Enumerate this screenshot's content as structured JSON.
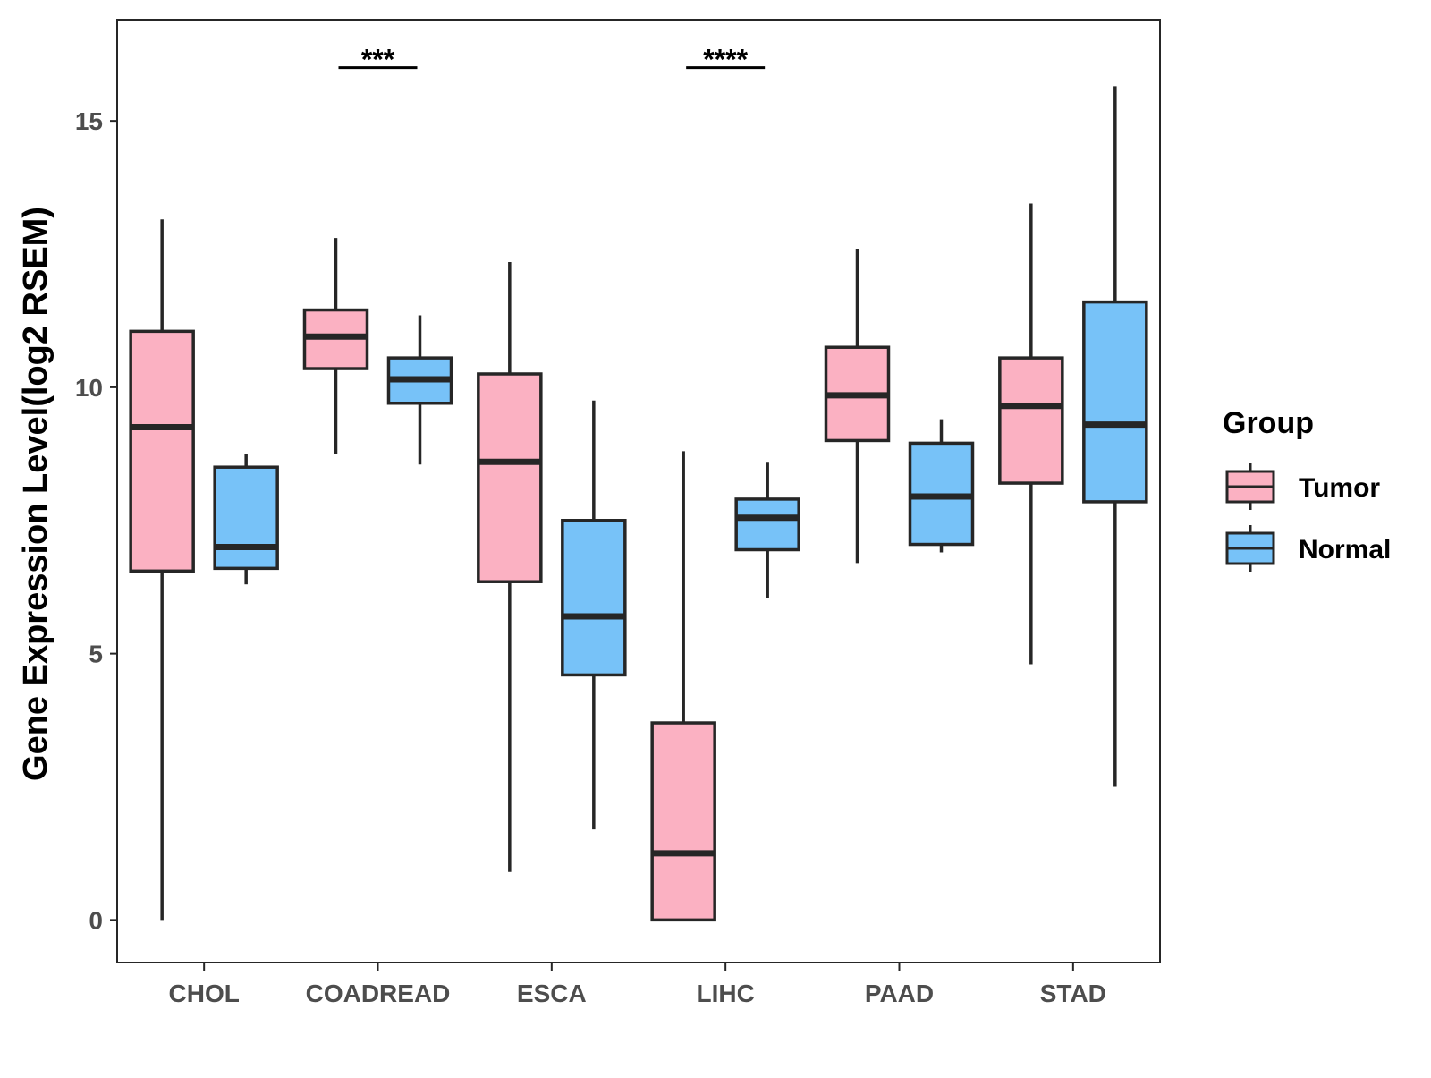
{
  "chart_data": {
    "type": "box",
    "title": "",
    "xlabel": "",
    "ylabel": "Gene Expression Level(log2 RSEM)",
    "ylim": [
      -0.8,
      16.9
    ],
    "yticks": [
      0,
      5,
      10,
      15
    ],
    "categories": [
      "CHOL",
      "COADREAD",
      "ESCA",
      "LIHC",
      "PAAD",
      "STAD"
    ],
    "grid": false,
    "legend": {
      "title": "Group",
      "position": "right",
      "entries": [
        "Tumor",
        "Normal"
      ]
    },
    "series": [
      {
        "name": "Tumor",
        "color": "#FBB1C2",
        "boxes": [
          {
            "category": "CHOL",
            "min": 0.0,
            "q1": 6.55,
            "median": 9.25,
            "q3": 11.05,
            "max": 13.15
          },
          {
            "category": "COADREAD",
            "min": 8.75,
            "q1": 10.35,
            "median": 10.95,
            "q3": 11.45,
            "max": 12.8
          },
          {
            "category": "ESCA",
            "min": 0.9,
            "q1": 6.35,
            "median": 8.6,
            "q3": 10.25,
            "max": 12.35
          },
          {
            "category": "LIHC",
            "min": 0.0,
            "q1": 0.0,
            "median": 1.25,
            "q3": 3.7,
            "max": 8.8
          },
          {
            "category": "PAAD",
            "min": 6.7,
            "q1": 9.0,
            "median": 9.85,
            "q3": 10.75,
            "max": 12.6
          },
          {
            "category": "STAD",
            "min": 4.8,
            "q1": 8.2,
            "median": 9.65,
            "q3": 10.55,
            "max": 13.45
          }
        ]
      },
      {
        "name": "Normal",
        "color": "#77C2F8",
        "boxes": [
          {
            "category": "CHOL",
            "min": 6.3,
            "q1": 6.6,
            "median": 7.0,
            "q3": 8.5,
            "max": 8.75
          },
          {
            "category": "COADREAD",
            "min": 8.55,
            "q1": 9.7,
            "median": 10.15,
            "q3": 10.55,
            "max": 11.35
          },
          {
            "category": "ESCA",
            "min": 1.7,
            "q1": 4.6,
            "median": 5.7,
            "q3": 7.5,
            "max": 9.75
          },
          {
            "category": "LIHC",
            "min": 6.05,
            "q1": 6.95,
            "median": 7.55,
            "q3": 7.9,
            "max": 8.6
          },
          {
            "category": "PAAD",
            "min": 6.9,
            "q1": 7.05,
            "median": 7.95,
            "q3": 8.95,
            "max": 9.4
          },
          {
            "category": "STAD",
            "min": 2.5,
            "q1": 7.85,
            "median": 9.3,
            "q3": 11.6,
            "max": 15.65
          }
        ]
      }
    ],
    "annotations": [
      {
        "category": "COADREAD",
        "label": "***",
        "y": 16.0
      },
      {
        "category": "LIHC",
        "label": "****",
        "y": 16.0
      }
    ]
  }
}
